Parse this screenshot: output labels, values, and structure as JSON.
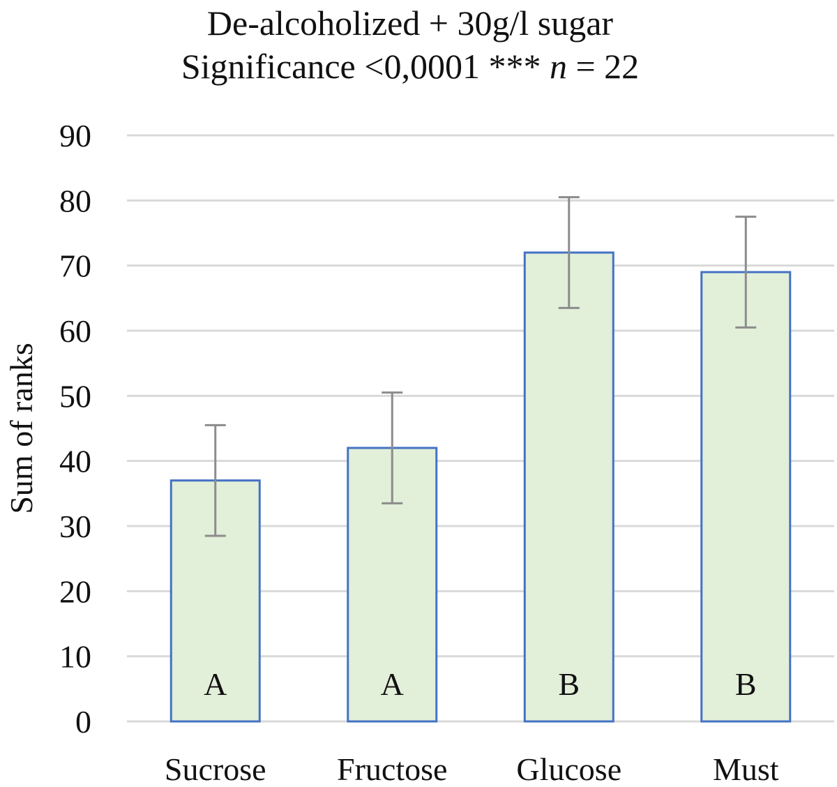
{
  "chart_data": {
    "type": "bar",
    "title": "De-alcoholized + 30g/l sugar",
    "subtitle": {
      "prefix": "Significance <0,0001 *** ",
      "n_symbol": "n",
      "suffix": " = 22"
    },
    "xlabel": "",
    "ylabel": "Sum of ranks",
    "ylim": [
      0,
      90
    ],
    "yticks": [
      "0",
      "10",
      "20",
      "30",
      "40",
      "50",
      "60",
      "70",
      "80",
      "90"
    ],
    "grid": true,
    "categories": [
      "Sucrose",
      "Fructose",
      "Glucose",
      "Must"
    ],
    "values": [
      37,
      42,
      72,
      69
    ],
    "error_low": [
      28.5,
      33.5,
      63.5,
      60.5
    ],
    "error_high": [
      45.5,
      50.5,
      80.5,
      77.5
    ],
    "group_letters": [
      "A",
      "A",
      "B",
      "B"
    ],
    "colors": {
      "bar_fill": "#e2efd9",
      "bar_stroke": "#4472c4",
      "error_bar": "#8c8c8c",
      "grid": "#d9d9d9",
      "text": "#111111"
    }
  }
}
